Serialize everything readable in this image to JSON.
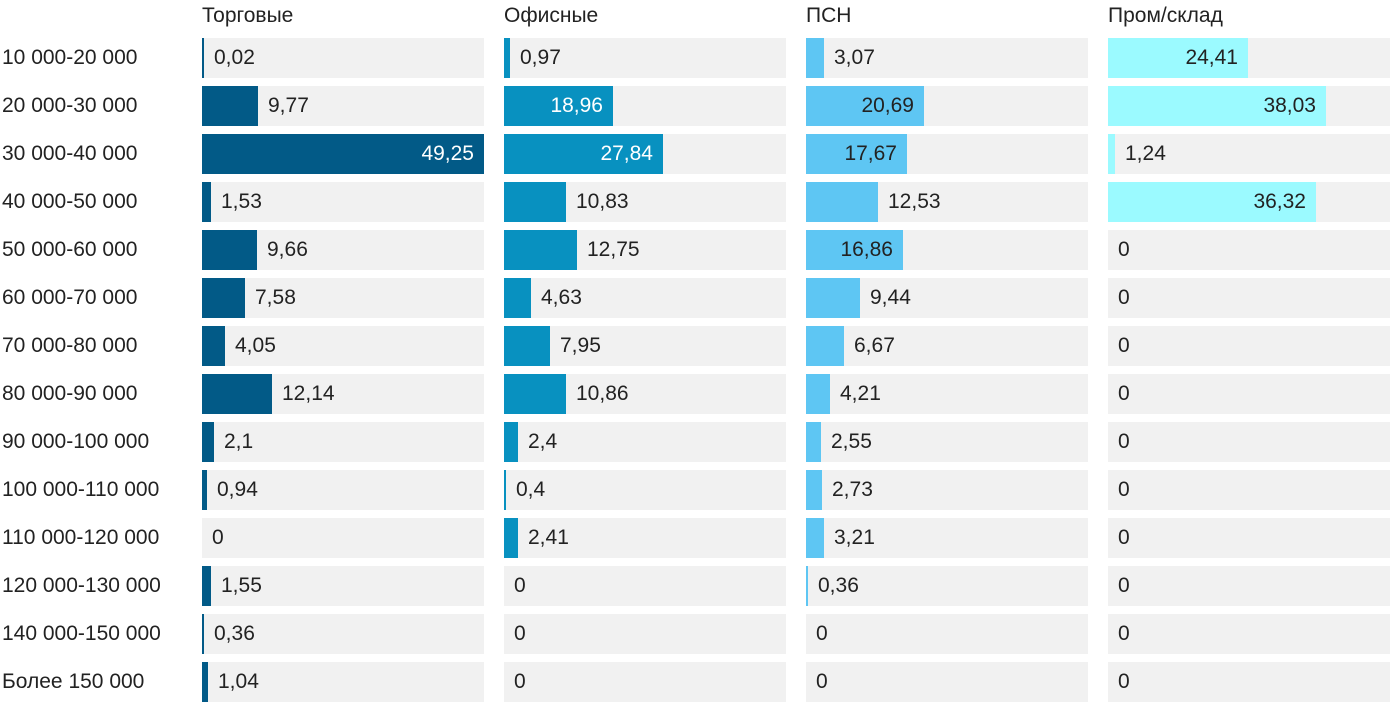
{
  "chart_data": {
    "type": "bar",
    "categories": [
      "10 000-20 000",
      "20 000-30 000",
      "30 000-40 000",
      "40 000-50 000",
      "50 000-60 000",
      "60 000-70 000",
      "70 000-80 000",
      "80 000-90 000",
      "90 000-100 000",
      "100 000-110 000",
      "110 000-120 000",
      "120 000-130 000",
      "140 000-150 000",
      "Более 150 000"
    ],
    "xlim": [
      0,
      50
    ],
    "series": [
      {
        "name": "Торговые",
        "color": "#025a87",
        "label_style": "white",
        "values": [
          0.02,
          9.77,
          49.25,
          1.53,
          9.66,
          7.58,
          4.05,
          12.14,
          2.1,
          0.94,
          0,
          1.55,
          0.36,
          1.04
        ],
        "labels": [
          "0,02",
          "9,77",
          "49,25",
          "1,53",
          "9,66",
          "7,58",
          "4,05",
          "12,14",
          "2,1",
          "0,94",
          "0",
          "1,55",
          "0,36",
          "1,04"
        ]
      },
      {
        "name": "Офисные",
        "color": "#0891c0",
        "label_style": "white",
        "values": [
          0.97,
          18.96,
          27.84,
          10.83,
          12.75,
          4.63,
          7.95,
          10.86,
          2.4,
          0.4,
          2.41,
          0,
          0,
          0
        ],
        "labels": [
          "0,97",
          "18,96",
          "27,84",
          "10,83",
          "12,75",
          "4,63",
          "7,95",
          "10,86",
          "2,4",
          "0,4",
          "2,41",
          "0",
          "0",
          "0"
        ]
      },
      {
        "name": "ПСН",
        "color": "#5ec6f3",
        "label_style": "dark",
        "values": [
          3.07,
          20.69,
          17.67,
          12.53,
          16.86,
          9.44,
          6.67,
          4.21,
          2.55,
          2.73,
          3.21,
          0.36,
          0,
          0
        ],
        "labels": [
          "3,07",
          "20,69",
          "17,67",
          "12,53",
          "16,86",
          "9,44",
          "6,67",
          "4,21",
          "2,55",
          "2,73",
          "3,21",
          "0,36",
          "0",
          "0"
        ]
      },
      {
        "name": "Пром/склад",
        "color": "#9bfaff",
        "label_style": "dark",
        "values": [
          24.41,
          38.03,
          1.24,
          36.32,
          0,
          0,
          0,
          0,
          0,
          0,
          0,
          0,
          0,
          0
        ],
        "labels": [
          "24,41",
          "38,03",
          "1,24",
          "36,32",
          "0",
          "0",
          "0",
          "0",
          "0",
          "0",
          "0",
          "0",
          "0",
          "0"
        ]
      }
    ]
  }
}
